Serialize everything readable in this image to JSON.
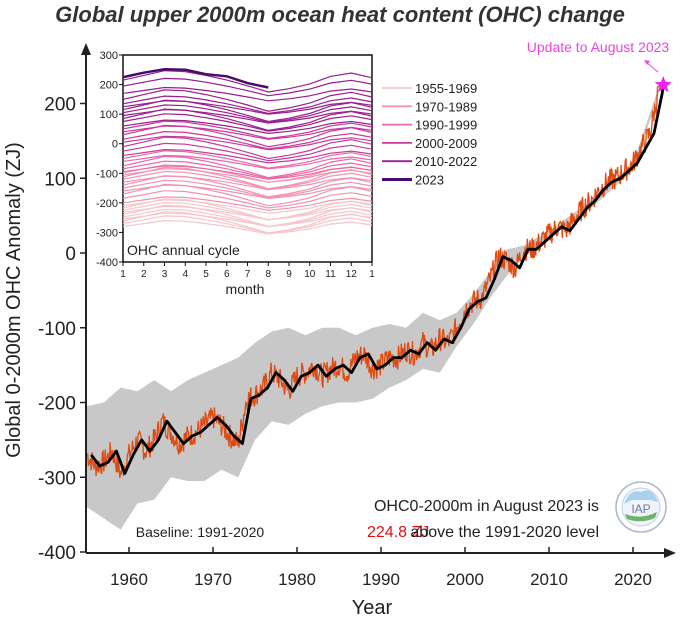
{
  "title": "Global upper 2000m ocean heat content (OHC) change",
  "chart_data": [
    {
      "type": "line",
      "title": "Global upper 2000m ocean heat content (OHC) change",
      "xlabel": "Year",
      "ylabel": "Global 0-2000m OHC Anomaly (ZJ)",
      "xlim": [
        1955,
        2025
      ],
      "ylim": [
        -400,
        250
      ],
      "xticks": [
        1960,
        1970,
        1980,
        1990,
        2000,
        2010,
        2020
      ],
      "yticks": [
        -400,
        -300,
        -200,
        -100,
        0,
        100,
        200
      ],
      "grid": false,
      "series": [
        {
          "name": "annual mean",
          "color": "#000000",
          "x": [
            1955,
            1956,
            1957,
            1958,
            1959,
            1960,
            1961,
            1962,
            1963,
            1964,
            1965,
            1966,
            1967,
            1968,
            1969,
            1970,
            1971,
            1972,
            1973,
            1974,
            1975,
            1976,
            1977,
            1978,
            1979,
            1980,
            1981,
            1982,
            1983,
            1984,
            1985,
            1986,
            1987,
            1988,
            1989,
            1990,
            1991,
            1992,
            1993,
            1994,
            1995,
            1996,
            1997,
            1998,
            1999,
            2000,
            2001,
            2002,
            2003,
            2004,
            2005,
            2006,
            2007,
            2008,
            2009,
            2010,
            2011,
            2012,
            2013,
            2014,
            2015,
            2016,
            2017,
            2018,
            2019,
            2020,
            2021,
            2022,
            2023
          ],
          "values": [
            -270,
            -285,
            -280,
            -265,
            -295,
            -270,
            -250,
            -265,
            -250,
            -225,
            -240,
            -255,
            -245,
            -240,
            -230,
            -220,
            -230,
            -245,
            -255,
            -195,
            -190,
            -180,
            -160,
            -170,
            -185,
            -165,
            -160,
            -150,
            -165,
            -155,
            -150,
            -160,
            -140,
            -135,
            -155,
            -150,
            -140,
            -140,
            -130,
            -135,
            -120,
            -130,
            -115,
            -120,
            -100,
            -75,
            -65,
            -60,
            -35,
            -5,
            -10,
            -20,
            5,
            5,
            15,
            25,
            35,
            30,
            45,
            60,
            70,
            85,
            95,
            100,
            110,
            120,
            140,
            160,
            215
          ]
        },
        {
          "name": "monthly",
          "color": "#e04a10",
          "note": "monthly values fluctuate around the annual mean"
        },
        {
          "name": "uncertainty band",
          "color": "#c8c8c8",
          "x": [
            1955,
            1957,
            1959,
            1961,
            1963,
            1965,
            1967,
            1969,
            1971,
            1973,
            1975,
            1977,
            1979,
            1981,
            1983,
            1985,
            1987,
            1989,
            1991,
            1993,
            1995,
            1997,
            1999,
            2001,
            2003,
            2005,
            2007,
            2010,
            2015,
            2020,
            2023
          ],
          "upper": [
            -205,
            -200,
            -180,
            -185,
            -170,
            -185,
            -170,
            -160,
            -150,
            -140,
            -120,
            -105,
            -100,
            -110,
            -100,
            -100,
            -110,
            -100,
            -95,
            -100,
            -80,
            -90,
            -80,
            -55,
            -25,
            5,
            10,
            30,
            70,
            120,
            220
          ],
          "lower": [
            -340,
            -355,
            -370,
            -335,
            -330,
            -300,
            -305,
            -305,
            -290,
            -300,
            -250,
            -225,
            -230,
            -215,
            -205,
            -200,
            -200,
            -195,
            -180,
            -170,
            -155,
            -160,
            -125,
            -95,
            -60,
            -30,
            -5,
            20,
            60,
            110,
            210
          ]
        }
      ],
      "annotations": [
        {
          "text": "Update to August 2023",
          "color": "#ee44dd",
          "marker": "star",
          "x": 2023.6,
          "y": 224.8
        },
        {
          "text": "Baseline: 1991-2020"
        },
        {
          "text": "OHC0-2000m in August 2023 is"
        },
        {
          "text": "224.8 ZJ",
          "color": "#dd1111"
        },
        {
          "text": "above the 1991-2020 level"
        }
      ]
    },
    {
      "type": "line",
      "title": "OHC annual cycle",
      "xlabel": "month",
      "ylabel": "",
      "xticks": [
        "1",
        "2",
        "3",
        "4",
        "5",
        "6",
        "7",
        "8",
        "9",
        "10",
        "11",
        "12",
        "1"
      ],
      "yticks": [
        -400,
        -300,
        -200,
        -100,
        0,
        100,
        200,
        300
      ],
      "ylim": [
        -400,
        300
      ],
      "legend_position": "right",
      "legend": [
        {
          "label": "1955-1969",
          "color": "#f6c6cc"
        },
        {
          "label": "1970-1989",
          "color": "#f193b1"
        },
        {
          "label": "1990-1999",
          "color": "#e868a8"
        },
        {
          "label": "2000-2009",
          "color": "#c83a9e"
        },
        {
          "label": "2010-2022",
          "color": "#9a1e8e"
        },
        {
          "label": "2023",
          "color": "#4a0a6a"
        }
      ],
      "cycle_shape": [
        0,
        10,
        20,
        18,
        10,
        0,
        -12,
        -25,
        -18,
        -8,
        8,
        15,
        5
      ],
      "groups": [
        {
          "name": "1955-1969",
          "offsets": [
            -280,
            -270,
            -262,
            -255,
            -248,
            -240,
            -232,
            -225,
            -218,
            -210
          ]
        },
        {
          "name": "1970-1989",
          "offsets": [
            -200,
            -185,
            -170,
            -160,
            -150,
            -140,
            -130,
            -120,
            -112,
            -105,
            -98
          ]
        },
        {
          "name": "1990-1999",
          "offsets": [
            -95,
            -85,
            -75,
            -60,
            -50
          ]
        },
        {
          "name": "2000-2009",
          "offsets": [
            -40,
            -25,
            -10,
            5,
            15,
            30,
            40,
            50
          ]
        },
        {
          "name": "2010-2022",
          "offsets": [
            60,
            75,
            85,
            95,
            105,
            115,
            125,
            135,
            150,
            170,
            195,
            215
          ]
        },
        {
          "name": "2023",
          "values": [
            225,
            240,
            252,
            250,
            235,
            228,
            205,
            190
          ]
        }
      ]
    }
  ]
}
